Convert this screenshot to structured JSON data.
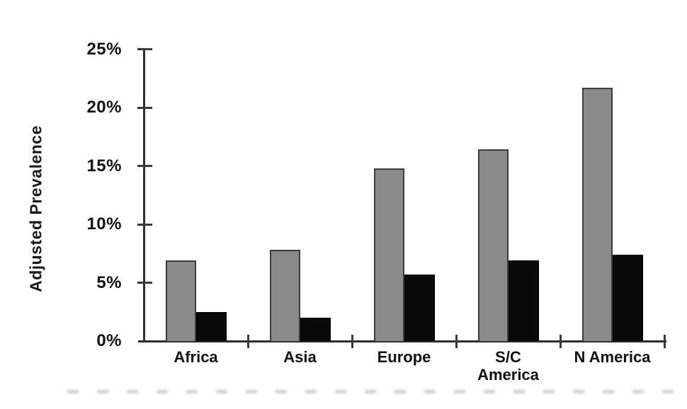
{
  "figure": {
    "background": "#ffffff",
    "axis_color": "#2e2e2e",
    "text_color": "#111111"
  },
  "chart_data": {
    "type": "bar",
    "title": "",
    "xlabel": "",
    "ylabel": "Adjusted Prevalence",
    "categories": [
      "Africa",
      "Asia",
      "Europe",
      "S/C\nAmerica",
      "N America"
    ],
    "series": [
      {
        "name": "gray",
        "color": "#8a8a8a",
        "border_color": "#3d3d3d",
        "values": [
          6.9,
          7.8,
          14.8,
          16.4,
          21.7
        ]
      },
      {
        "name": "black",
        "color": "#0a0a0a",
        "border_color": "#000000",
        "values": [
          2.5,
          2.0,
          5.7,
          6.9,
          7.4
        ]
      }
    ],
    "ylim": [
      0,
      25
    ],
    "ytick_values": [
      0,
      5,
      10,
      15,
      20,
      25
    ],
    "ytick_labels": [
      "0%",
      "5%",
      "10%",
      "15%",
      "20%",
      "25%"
    ],
    "grid": false,
    "legend": false
  }
}
